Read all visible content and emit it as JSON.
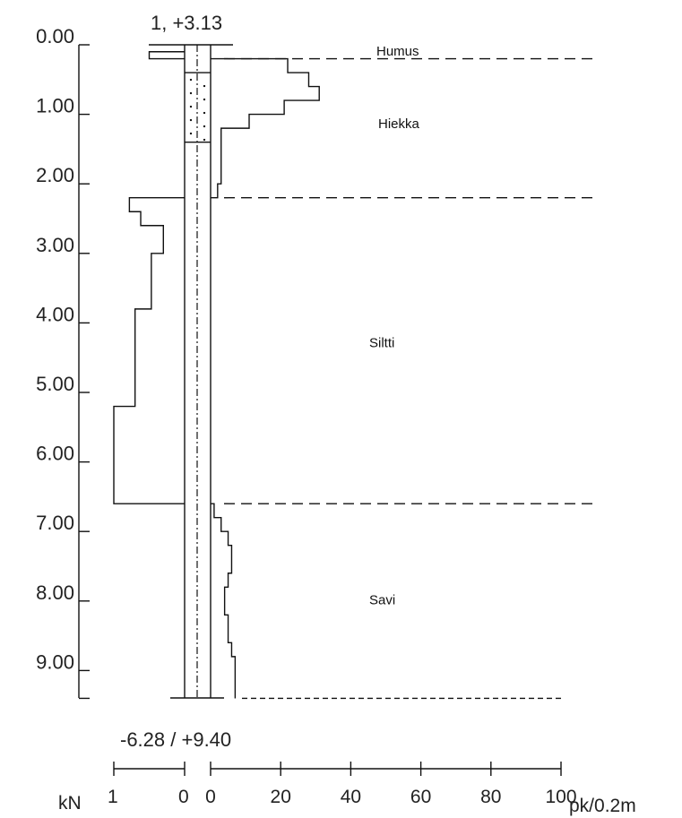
{
  "header": {
    "point_label": "1, +3.13",
    "bottom_label": "-6.28 / +9.40"
  },
  "depth_axis": {
    "ticks": [
      "0.00",
      "1.00",
      "2.00",
      "3.00",
      "4.00",
      "5.00",
      "6.00",
      "7.00",
      "8.00",
      "9.00"
    ],
    "tick_values": [
      0,
      1,
      2,
      3,
      4,
      5,
      6,
      7,
      8,
      9
    ],
    "range": [
      0,
      9.4
    ]
  },
  "layers": [
    {
      "label": "Humus",
      "top": 0,
      "bottom": 0.2
    },
    {
      "label": "Hiekka",
      "top": 0.2,
      "bottom": 2.2
    },
    {
      "label": "Siltti",
      "top": 2.2,
      "bottom": 6.6
    },
    {
      "label": "Savi",
      "top": 6.6,
      "bottom": 9.4
    }
  ],
  "scales": {
    "kn": {
      "unit": "kN",
      "tick_labels": [
        "1",
        "0"
      ],
      "range": [
        1,
        0
      ]
    },
    "pk": {
      "unit": "pk/0.2m",
      "tick_labels": [
        "0",
        "20",
        "40",
        "60",
        "80",
        "100"
      ],
      "range": [
        0,
        100
      ]
    }
  },
  "chart_data": {
    "type": "line",
    "torque_kN_profile": [
      {
        "depth": 0.2,
        "value": 0.5
      },
      {
        "depth": 2.2,
        "value": 0.0
      },
      {
        "depth": 2.4,
        "value": 0.78
      },
      {
        "depth": 2.6,
        "value": 0.62
      },
      {
        "depth": 3.0,
        "value": 0.3
      },
      {
        "depth": 3.8,
        "value": 0.47
      },
      {
        "depth": 5.2,
        "value": 0.7
      },
      {
        "depth": 6.6,
        "value": 1.0
      }
    ],
    "penetration_pk_profile": [
      {
        "depth": 0.2,
        "value": 3
      },
      {
        "depth": 0.4,
        "value": 22
      },
      {
        "depth": 0.6,
        "value": 28
      },
      {
        "depth": 0.8,
        "value": 31
      },
      {
        "depth": 1.0,
        "value": 21
      },
      {
        "depth": 1.2,
        "value": 11
      },
      {
        "depth": 1.4,
        "value": 3
      },
      {
        "depth": 1.6,
        "value": 3
      },
      {
        "depth": 1.8,
        "value": 3
      },
      {
        "depth": 2.0,
        "value": 3
      },
      {
        "depth": 2.2,
        "value": 2
      },
      {
        "depth": 6.6,
        "value": 0
      },
      {
        "depth": 6.8,
        "value": 1
      },
      {
        "depth": 7.0,
        "value": 3
      },
      {
        "depth": 7.2,
        "value": 5
      },
      {
        "depth": 7.4,
        "value": 6
      },
      {
        "depth": 7.6,
        "value": 6
      },
      {
        "depth": 7.8,
        "value": 5
      },
      {
        "depth": 8.0,
        "value": 4
      },
      {
        "depth": 8.2,
        "value": 4
      },
      {
        "depth": 8.4,
        "value": 5
      },
      {
        "depth": 8.6,
        "value": 5
      },
      {
        "depth": 8.8,
        "value": 6
      },
      {
        "depth": 9.0,
        "value": 7
      },
      {
        "depth": 9.2,
        "value": 7
      },
      {
        "depth": 9.4,
        "value": 7
      }
    ],
    "loose_zone": {
      "top": 0.4,
      "bottom": 1.4
    }
  }
}
